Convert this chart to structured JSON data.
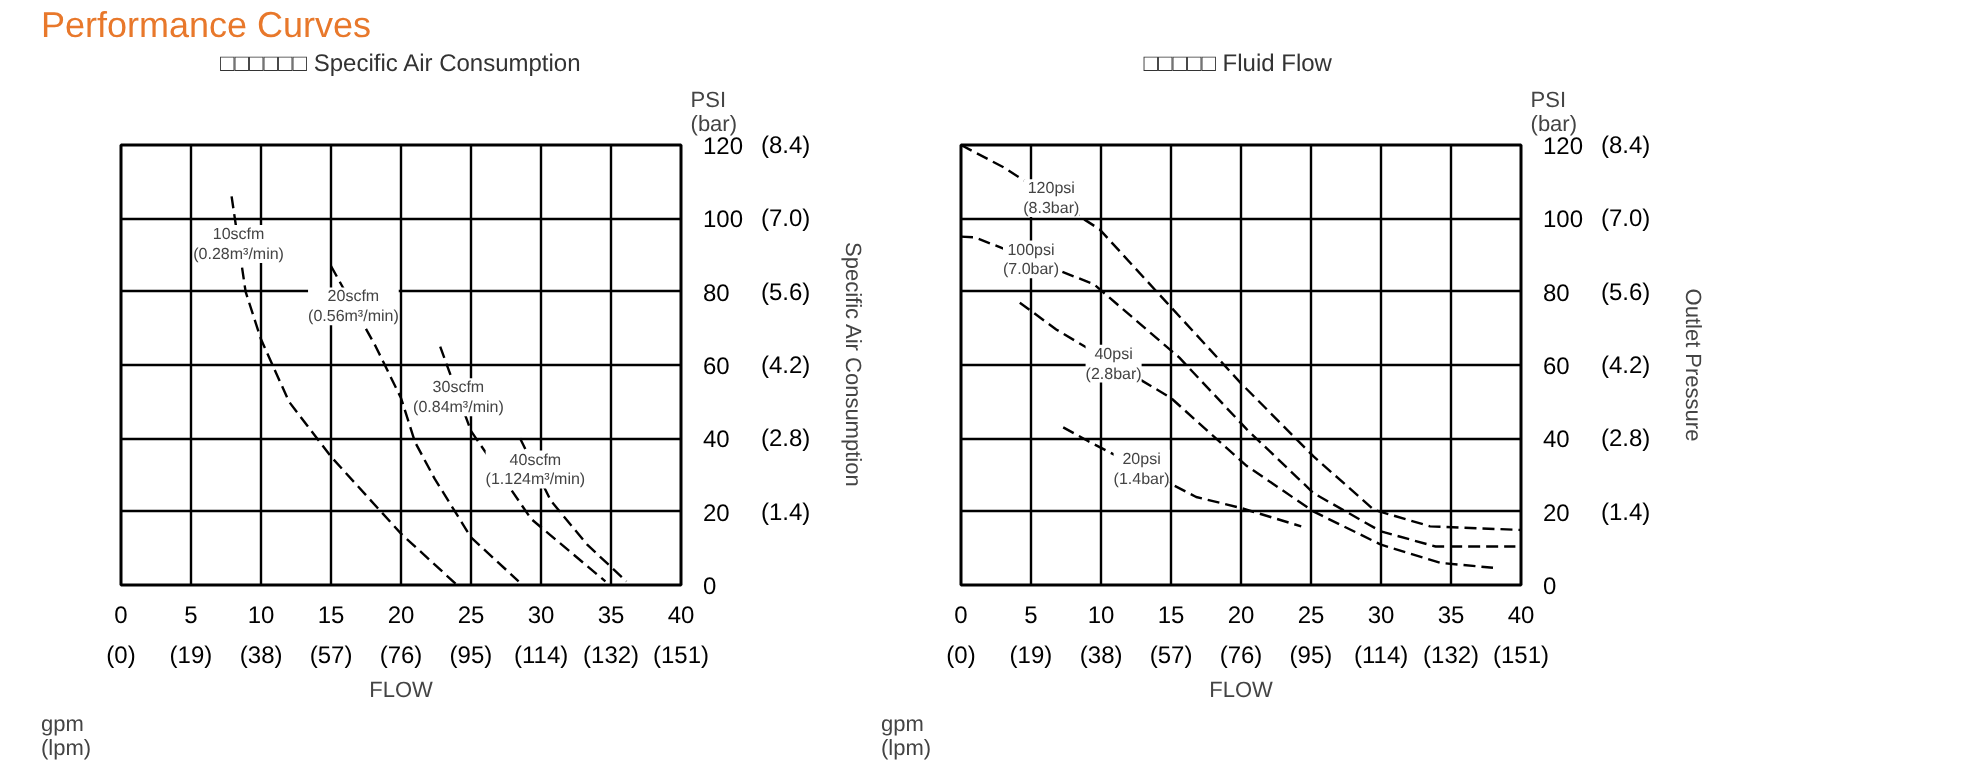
{
  "chart_data": [
    {
      "type": "line",
      "title": "Performance Curves",
      "subtitle": "□□□□□□ Specific Air Consumption",
      "xlabel": "FLOW",
      "y2label": "Specific Air Consumption",
      "xlim": [
        0,
        40
      ],
      "ylim": [
        0,
        120
      ],
      "xticks": [
        0,
        5,
        10,
        15,
        20,
        25,
        30,
        35,
        40
      ],
      "yticks": [
        0,
        20,
        40,
        60,
        80,
        100,
        120
      ],
      "x2lim": [
        0,
        151.4
      ],
      "x2ticks": [
        {
          "value": 0,
          "label": "(0)"
        },
        {
          "value": 18.9,
          "label": "(19)"
        },
        {
          "value": 37.9,
          "label": "(38)"
        },
        {
          "value": 56.8,
          "label": "(57)"
        },
        {
          "value": 75.7,
          "label": "(76)"
        },
        {
          "value": 94.6,
          "label": "(95)"
        },
        {
          "value": 113.6,
          "label": "(114)"
        },
        {
          "value": 132.5,
          "label": "(132)"
        },
        {
          "value": 151.4,
          "label": "(151)"
        }
      ],
      "y2lim": [
        0,
        8.4
      ],
      "y2ticks": [
        {
          "value": 1.4,
          "label": "(1.4)"
        },
        {
          "value": 2.8,
          "label": "(2.8)"
        },
        {
          "value": 4.2,
          "label": "(4.2)"
        },
        {
          "value": 5.6,
          "label": "(5.6)"
        },
        {
          "value": 7.0,
          "label": "(7.0)"
        },
        {
          "value": 8.4,
          "label": "(8.4)"
        }
      ],
      "grid": true,
      "marker": "none",
      "line_style": "dashed",
      "series": [
        {
          "color": "#000000",
          "x": [
            7.9,
            8.9,
            10,
            12,
            15,
            20,
            24
          ],
          "values": [
            106,
            80,
            67,
            50,
            35,
            14,
            0
          ]
        },
        {
          "color": "#000000",
          "x": [
            15,
            18.2,
            20,
            21,
            22.4,
            25,
            28.4
          ],
          "values": [
            87,
            65,
            51,
            39,
            29,
            13,
            1
          ]
        },
        {
          "color": "#000000",
          "x": [
            22.8,
            25,
            29.3,
            34.6
          ],
          "values": [
            65,
            42,
            18,
            1
          ]
        },
        {
          "color": "#000000",
          "x": [
            28.5,
            30.7,
            33.3,
            36.1
          ],
          "values": [
            40,
            23,
            11,
            1
          ]
        }
      ],
      "annotations": [
        "PSI\n(bar)",
        "gpm\n(lpm)",
        {
          "text": "10scfm\n(0.28m³/min)",
          "x": 8.4,
          "y": 93
        },
        {
          "text": "20scfm\n(0.56m³/min)",
          "x": 16.6,
          "y": 76
        },
        {
          "text": "30scfm\n(0.84m³/min)",
          "x": 24.1,
          "y": 51.2
        },
        {
          "text": "40scfm\n(1.124m³/min)",
          "x": 29.6,
          "y": 31.5
        }
      ]
    },
    {
      "type": "line",
      "subtitle": "□□□□□  Fluid Flow",
      "xlabel": "FLOW",
      "y2label": "Outlet Pressure",
      "xlim": [
        0,
        40
      ],
      "ylim": [
        0,
        120
      ],
      "xticks": [
        0,
        5,
        10,
        15,
        20,
        25,
        30,
        35,
        40
      ],
      "yticks": [
        0,
        20,
        40,
        60,
        80,
        100,
        120
      ],
      "x2lim": [
        0,
        151.4
      ],
      "x2ticks": [
        {
          "value": 0,
          "label": "(0)"
        },
        {
          "value": 18.9,
          "label": "(19)"
        },
        {
          "value": 37.9,
          "label": "(38)"
        },
        {
          "value": 56.8,
          "label": "(57)"
        },
        {
          "value": 75.7,
          "label": "(76)"
        },
        {
          "value": 94.6,
          "label": "(95)"
        },
        {
          "value": 113.6,
          "label": "(114)"
        },
        {
          "value": 132.5,
          "label": "(132)"
        },
        {
          "value": 151.4,
          "label": "(151)"
        }
      ],
      "y2lim": [
        0,
        8.4
      ],
      "y2ticks": [
        {
          "value": 1.4,
          "label": "(1.4)"
        },
        {
          "value": 2.8,
          "label": "(2.8)"
        },
        {
          "value": 4.2,
          "label": "(4.2)"
        },
        {
          "value": 5.6,
          "label": "(5.6)"
        },
        {
          "value": 7.0,
          "label": "(7.0)"
        },
        {
          "value": 8.4,
          "label": "(8.4)"
        }
      ],
      "grid": true,
      "marker": "none",
      "line_style": "dashed",
      "series": [
        {
          "color": "#000000",
          "x": [
            0,
            3,
            9.9,
            14.7,
            20,
            25.2,
            29.5,
            33.5,
            40
          ],
          "values": [
            120,
            114,
            97,
            77,
            55,
            35,
            20.5,
            16,
            15
          ]
        },
        {
          "color": "#000000",
          "x": [
            0,
            1,
            9.5,
            15.6,
            20.4,
            25.2,
            30,
            33.9,
            39.6
          ],
          "values": [
            95,
            94.8,
            82,
            62,
            42.5,
            25,
            14.6,
            10.5,
            10.5
          ]
        },
        {
          "color": "#000000",
          "x": [
            4.2,
            6.8,
            15,
            20.4,
            25.2,
            30,
            34.3,
            38
          ],
          "values": [
            77,
            69.7,
            51,
            32.5,
            20,
            11,
            6,
            4.7
          ]
        },
        {
          "color": "#000000",
          "x": [
            7.3,
            9,
            16.8,
            20,
            24.3
          ],
          "values": [
            43,
            39.4,
            24,
            21,
            16
          ]
        }
      ],
      "annotations": [
        "PSI\n(bar)",
        "gpm\n(lpm)",
        {
          "text": "120psi\n(8.3bar)",
          "x": 6.45,
          "y": 105.5
        },
        {
          "text": "100psi\n(7.0bar)",
          "x": 5,
          "y": 88.8
        },
        {
          "text": "40psi\n(2.8bar)",
          "x": 10.9,
          "y": 60.35
        },
        {
          "text": "20psi\n(1.4bar)",
          "x": 12.9,
          "y": 31.7
        }
      ]
    }
  ]
}
